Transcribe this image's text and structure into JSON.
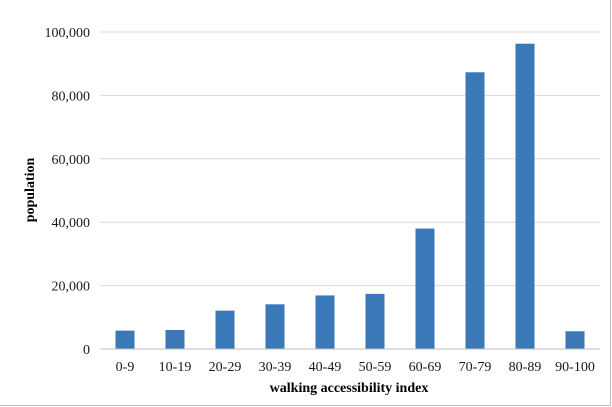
{
  "chart_data": {
    "type": "bar",
    "xlabel": "walking accessibility index",
    "ylabel": "population",
    "categories": [
      "0-9",
      "10-19",
      "20-29",
      "30-39",
      "40-49",
      "50-59",
      "60-69",
      "70-79",
      "80-89",
      "90-100"
    ],
    "values": [
      5800,
      6000,
      12100,
      14100,
      16900,
      17400,
      38000,
      87300,
      96300,
      5600
    ],
    "ylim": [
      0,
      100000
    ],
    "yticks": [
      "0",
      "20,000",
      "40,000",
      "60,000",
      "80,000",
      "100,000"
    ],
    "ytick_values": [
      0,
      20000,
      40000,
      60000,
      80000,
      100000
    ],
    "grid": true,
    "legend": "none",
    "colors": {
      "bar": "#3a78b8",
      "grid": "#d9d9d9",
      "axis": "#bfbfbf"
    }
  }
}
